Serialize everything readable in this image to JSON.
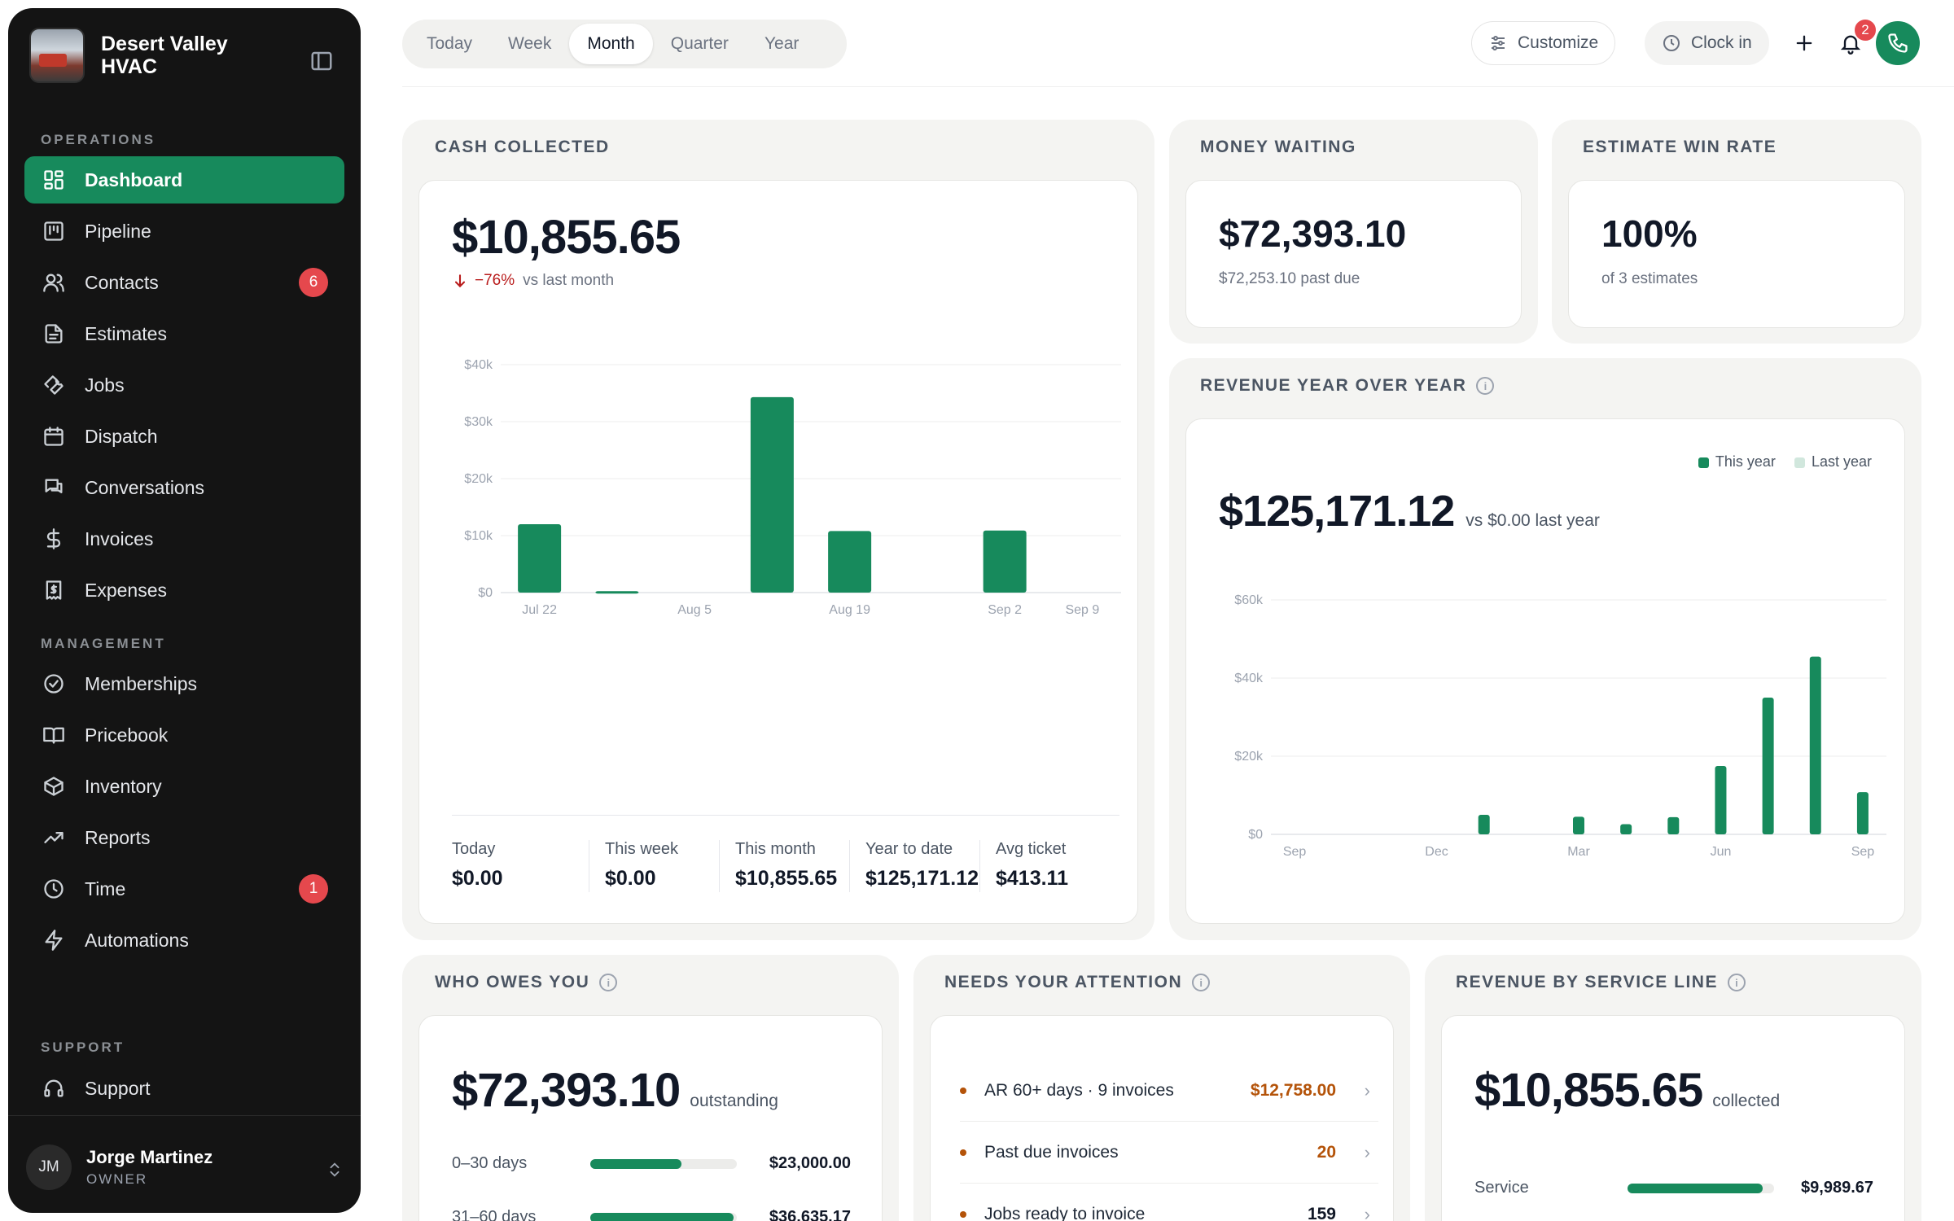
{
  "sidebar": {
    "brand": "Desert Valley HVAC",
    "sections": {
      "operations": "OPERATIONS",
      "management": "MANAGEMENT",
      "support": "SUPPORT"
    },
    "items": [
      {
        "label": "Dashboard",
        "icon": "dashboard-icon"
      },
      {
        "label": "Pipeline",
        "icon": "pipeline-icon"
      },
      {
        "label": "Contacts",
        "icon": "contacts-icon",
        "badge": "6"
      },
      {
        "label": "Estimates",
        "icon": "estimates-icon"
      },
      {
        "label": "Jobs",
        "icon": "wrench-icon"
      },
      {
        "label": "Dispatch",
        "icon": "calendar-icon"
      },
      {
        "label": "Conversations",
        "icon": "chat-icon"
      },
      {
        "label": "Invoices",
        "icon": "dollar-icon"
      },
      {
        "label": "Expenses",
        "icon": "receipt-icon"
      },
      {
        "label": "Memberships",
        "icon": "badge-check-icon"
      },
      {
        "label": "Pricebook",
        "icon": "book-icon"
      },
      {
        "label": "Inventory",
        "icon": "box-icon"
      },
      {
        "label": "Reports",
        "icon": "trend-icon"
      },
      {
        "label": "Time",
        "icon": "clock-icon",
        "badge": "1"
      },
      {
        "label": "Automations",
        "icon": "bolt-icon"
      },
      {
        "label": "Support",
        "icon": "headset-icon"
      }
    ],
    "user": {
      "initials": "JM",
      "name": "Jorge Martinez",
      "role": "OWNER"
    }
  },
  "topbar": {
    "tabs": [
      "Today",
      "Week",
      "Month",
      "Quarter",
      "Year"
    ],
    "active_tab": "Month",
    "customize": "Customize",
    "clock_in": "Clock in",
    "notifications": "2"
  },
  "cash_collected": {
    "title": "CASH COLLECTED",
    "amount": "$10,855.65",
    "change": "−76%",
    "change_suffix": "vs last month",
    "stats": [
      {
        "label": "Today",
        "value": "$0.00"
      },
      {
        "label": "This week",
        "value": "$0.00"
      },
      {
        "label": "This month",
        "value": "$10,855.65"
      },
      {
        "label": "Year to date",
        "value": "$125,171.12"
      },
      {
        "label": "Avg ticket",
        "value": "$413.11"
      }
    ]
  },
  "money_waiting": {
    "title": "MONEY WAITING",
    "amount": "$72,393.10",
    "sub": "$72,253.10 past due"
  },
  "win_rate": {
    "title": "ESTIMATE WIN RATE",
    "amount": "100%",
    "sub": "of 3 estimates"
  },
  "revenue_yoy": {
    "title": "REVENUE YEAR OVER YEAR",
    "amount": "$125,171.12",
    "sub": "vs $0.00 last year",
    "legend": [
      "This year",
      "Last year"
    ]
  },
  "who_owes": {
    "title": "WHO OWES YOU",
    "amount": "$72,393.10",
    "suffix": "outstanding",
    "rows": [
      {
        "label": "0–30 days",
        "value": "$23,000.00",
        "fraction": 0.62
      },
      {
        "label": "31–60 days",
        "value": "$36,635.17",
        "fraction": 0.98
      }
    ]
  },
  "attention": {
    "title": "NEEDS YOUR ATTENTION",
    "rows": [
      {
        "label": "AR 60+ days · 9 invoices",
        "value": "$12,758.00",
        "color": "#b45309"
      },
      {
        "label": "Past due invoices",
        "value": "20",
        "color": "#b45309"
      },
      {
        "label": "Jobs ready to invoice",
        "value": "159",
        "color": "#111827"
      }
    ]
  },
  "service_line": {
    "title": "REVENUE BY SERVICE LINE",
    "amount": "$10,855.65",
    "suffix": "collected",
    "rows": [
      {
        "label": "Service",
        "value": "$9,989.67",
        "fraction": 0.92
      }
    ]
  },
  "colors": {
    "brand": "#178a5c",
    "sidebar": "#141414",
    "badge": "#e5484d",
    "down": "#b91c1c",
    "last_year": "#d1e7dd"
  },
  "chart_data": [
    {
      "type": "bar",
      "title": "CASH COLLECTED",
      "categories": [
        "Jul 22",
        "Jul 29",
        "Aug 5",
        "Aug 12",
        "Aug 19",
        "Aug 26",
        "Sep 2",
        "Sep 9"
      ],
      "x_tick_labels": [
        "Jul 22",
        "Aug 5",
        "Aug 19",
        "Sep 2",
        "Sep 9"
      ],
      "values": [
        12000,
        250,
        0,
        34300,
        10800,
        0,
        10900,
        0
      ],
      "ylim": [
        0,
        40000
      ],
      "yticks": [
        "$0",
        "$10k",
        "$20k",
        "$30k",
        "$40k"
      ],
      "grid": true
    },
    {
      "type": "bar",
      "title": "REVENUE YEAR OVER YEAR",
      "categories": [
        "Sep",
        "Oct",
        "Nov",
        "Dec",
        "Jan",
        "Feb",
        "Mar",
        "Apr",
        "May",
        "Jun",
        "Jul",
        "Aug",
        "Sep"
      ],
      "x_tick_labels": [
        "Sep",
        "Dec",
        "Mar",
        "Jun",
        "Sep"
      ],
      "series": [
        {
          "name": "This year",
          "values": [
            0,
            0,
            0,
            0,
            5000,
            0,
            4500,
            2600,
            4400,
            17500,
            35000,
            45500,
            10800
          ]
        },
        {
          "name": "Last year",
          "values": [
            0,
            0,
            0,
            0,
            0,
            0,
            0,
            0,
            0,
            0,
            0,
            0,
            0
          ]
        }
      ],
      "ylim": [
        0,
        60000
      ],
      "yticks": [
        "$0",
        "$20k",
        "$40k",
        "$60k"
      ],
      "legend": "top-right",
      "grid": true
    }
  ]
}
